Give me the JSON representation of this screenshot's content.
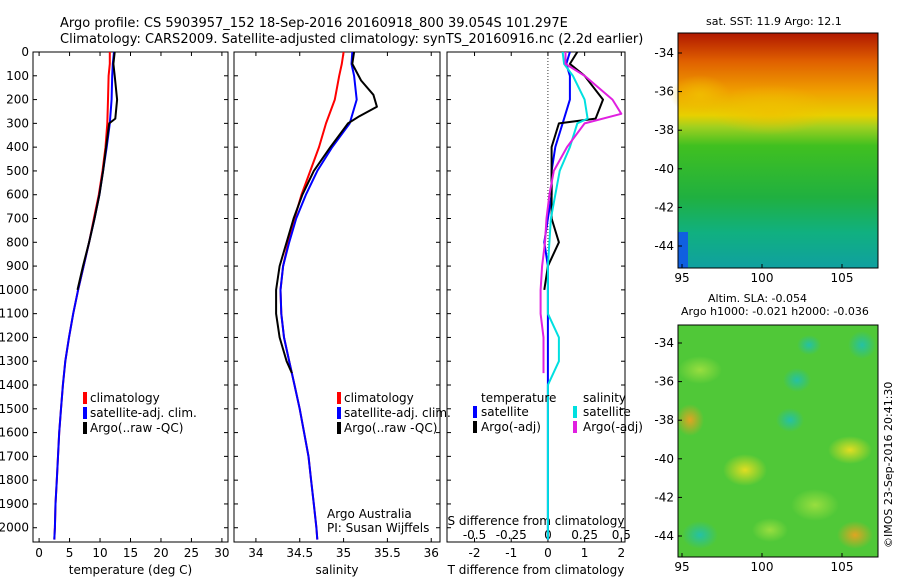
{
  "header": {
    "line1": "Argo profile: CS 5903957_152 18-Sep-2016 20160918_800 39.054S 101.297E",
    "line2": "Climatology: CARS2009. Satellite-adjusted climatology: synTS_20160916.nc (2.2d earlier)"
  },
  "colors": {
    "climatology": "#ff0000",
    "satellite_adj": "#0000ff",
    "argo": "#000000",
    "satellite_s": "#00e0e0",
    "argo_adj_s": "#e020e0"
  },
  "depth_axis": {
    "ticks": [
      0,
      100,
      200,
      300,
      400,
      500,
      600,
      700,
      800,
      900,
      1000,
      1100,
      1200,
      1300,
      1400,
      1500,
      1600,
      1700,
      1800,
      1900,
      2000
    ],
    "range": [
      0,
      2060
    ]
  },
  "legend": {
    "climatology": "climatology",
    "satellite_adj": "satellite-adj. clim.",
    "argo": "Argo(..raw -QC)"
  },
  "diff_legend": {
    "temperature_heading": "temperature",
    "salinity_heading": "salinity",
    "t_satellite": "satellite",
    "t_argo": "Argo(-adj)",
    "s_satellite": "satellite",
    "s_argo": "Argo(-adj)"
  },
  "credits": {
    "org": "Argo Australia",
    "pi": "PI: Susan Wijffels"
  },
  "maps": {
    "sst_title": "sat. SST: 11.9 Argo: 12.1",
    "sla_title1": "Altim. SLA: -0.054",
    "sla_title2": "Argo h1000: -0.021 h2000: -0.036",
    "lat_ticks": [
      "-34",
      "-36",
      "-38",
      "-40",
      "-42",
      "-44"
    ],
    "lon_ticks": [
      "95",
      "100",
      "105"
    ],
    "timestamp": "©IMOS 23-Sep-2016 20:41:30"
  },
  "chart_data": [
    {
      "type": "line",
      "id": "temperature",
      "xlabel": "temperature (deg C)",
      "ylabel": "",
      "xlim": [
        -1,
        31
      ],
      "ylim": [
        2060,
        0
      ],
      "xticks": [
        0,
        5,
        10,
        15,
        20,
        25,
        30
      ],
      "series": [
        {
          "name": "climatology",
          "color": "#ff0000",
          "width": 2,
          "points": [
            [
              11.6,
              0
            ],
            [
              11.6,
              50
            ],
            [
              11.4,
              100
            ],
            [
              11.3,
              200
            ],
            [
              11.2,
              300
            ],
            [
              10.9,
              400
            ],
            [
              10.4,
              500
            ],
            [
              9.8,
              600
            ],
            [
              9.0,
              700
            ],
            [
              8.2,
              800
            ],
            [
              7.3,
              900
            ],
            [
              6.4,
              1000
            ],
            [
              5.6,
              1100
            ],
            [
              4.9,
              1200
            ],
            [
              4.3,
              1300
            ],
            [
              3.9,
              1400
            ],
            [
              3.6,
              1500
            ],
            [
              3.3,
              1600
            ],
            [
              3.1,
              1700
            ],
            [
              2.9,
              1800
            ],
            [
              2.7,
              1900
            ],
            [
              2.6,
              2000
            ],
            [
              2.5,
              2050
            ]
          ]
        },
        {
          "name": "satellite-adj. clim.",
          "color": "#0000ff",
          "width": 2,
          "points": [
            [
              12.3,
              0
            ],
            [
              12.1,
              50
            ],
            [
              12.0,
              100
            ],
            [
              11.9,
              200
            ],
            [
              11.6,
              300
            ],
            [
              11.1,
              400
            ],
            [
              10.5,
              500
            ],
            [
              9.9,
              600
            ],
            [
              9.1,
              700
            ],
            [
              8.2,
              800
            ],
            [
              7.3,
              900
            ],
            [
              6.4,
              1000
            ],
            [
              5.6,
              1100
            ],
            [
              4.9,
              1200
            ],
            [
              4.3,
              1300
            ],
            [
              3.9,
              1400
            ],
            [
              3.6,
              1500
            ],
            [
              3.3,
              1600
            ],
            [
              3.1,
              1700
            ],
            [
              2.9,
              1800
            ],
            [
              2.7,
              1900
            ],
            [
              2.6,
              2000
            ],
            [
              2.5,
              2050
            ]
          ]
        },
        {
          "name": "Argo(..raw -QC)",
          "color": "#000000",
          "width": 2,
          "points": [
            [
              12.4,
              0
            ],
            [
              12.2,
              50
            ],
            [
              12.4,
              100
            ],
            [
              12.8,
              200
            ],
            [
              12.5,
              280
            ],
            [
              11.5,
              300
            ],
            [
              11.0,
              400
            ],
            [
              10.5,
              500
            ],
            [
              9.9,
              600
            ],
            [
              9.1,
              700
            ],
            [
              8.2,
              800
            ],
            [
              7.2,
              900
            ],
            [
              6.3,
              1000
            ]
          ]
        }
      ]
    },
    {
      "type": "line",
      "id": "salinity",
      "xlabel": "salinity",
      "ylabel": "",
      "xlim": [
        33.75,
        36.1
      ],
      "ylim": [
        2060,
        0
      ],
      "xticks": [
        34,
        34.5,
        35,
        35.5,
        36
      ],
      "series": [
        {
          "name": "climatology",
          "color": "#ff0000",
          "width": 2,
          "points": [
            [
              35.0,
              0
            ],
            [
              34.98,
              50
            ],
            [
              34.95,
              100
            ],
            [
              34.9,
              200
            ],
            [
              34.8,
              300
            ],
            [
              34.72,
              400
            ],
            [
              34.62,
              500
            ],
            [
              34.52,
              600
            ],
            [
              34.44,
              700
            ],
            [
              34.37,
              800
            ],
            [
              34.31,
              900
            ],
            [
              34.28,
              1000
            ],
            [
              34.29,
              1100
            ],
            [
              34.32,
              1200
            ],
            [
              34.38,
              1300
            ],
            [
              34.44,
              1400
            ],
            [
              34.5,
              1500
            ],
            [
              34.55,
              1600
            ],
            [
              34.6,
              1700
            ],
            [
              34.63,
              1800
            ],
            [
              34.66,
              1900
            ],
            [
              34.69,
              2000
            ],
            [
              34.7,
              2050
            ]
          ]
        },
        {
          "name": "satellite-adj. clim.",
          "color": "#0000ff",
          "width": 2,
          "points": [
            [
              35.1,
              0
            ],
            [
              35.09,
              50
            ],
            [
              35.12,
              100
            ],
            [
              35.15,
              200
            ],
            [
              35.07,
              300
            ],
            [
              34.87,
              400
            ],
            [
              34.7,
              500
            ],
            [
              34.57,
              600
            ],
            [
              34.46,
              700
            ],
            [
              34.38,
              800
            ],
            [
              34.31,
              900
            ],
            [
              34.28,
              1000
            ],
            [
              34.29,
              1100
            ],
            [
              34.32,
              1200
            ],
            [
              34.38,
              1300
            ],
            [
              34.44,
              1400
            ],
            [
              34.5,
              1500
            ],
            [
              34.55,
              1600
            ],
            [
              34.6,
              1700
            ],
            [
              34.63,
              1800
            ],
            [
              34.66,
              1900
            ],
            [
              34.69,
              2000
            ],
            [
              34.7,
              2050
            ]
          ]
        },
        {
          "name": "Argo(..raw -QC)",
          "color": "#000000",
          "width": 2,
          "points": [
            [
              35.12,
              0
            ],
            [
              35.1,
              50
            ],
            [
              35.2,
              120
            ],
            [
              35.34,
              180
            ],
            [
              35.38,
              230
            ],
            [
              35.18,
              270
            ],
            [
              35.05,
              300
            ],
            [
              34.85,
              400
            ],
            [
              34.66,
              500
            ],
            [
              34.53,
              600
            ],
            [
              34.43,
              700
            ],
            [
              34.35,
              800
            ],
            [
              34.27,
              900
            ],
            [
              34.23,
              1000
            ],
            [
              34.23,
              1100
            ],
            [
              34.27,
              1200
            ],
            [
              34.35,
              1300
            ],
            [
              34.41,
              1350
            ]
          ]
        }
      ]
    },
    {
      "type": "line",
      "id": "difference",
      "xlabel": "T difference from climatology",
      "top_label": "S difference from climatology",
      "ylabel": "",
      "xlim": [
        -2.75,
        2.1
      ],
      "ylim": [
        2060,
        0
      ],
      "xticks": [
        -2,
        -1,
        0,
        1,
        2
      ],
      "top_ticks": [
        "-0.5",
        "-0.25",
        "0",
        "0.25",
        "0.5"
      ],
      "top_tick_values": [
        -2,
        -1,
        0,
        1,
        2
      ],
      "series": [
        {
          "name": "temperature satellite",
          "color": "#0000ff",
          "width": 2,
          "points": [
            [
              0.6,
              0
            ],
            [
              0.5,
              50
            ],
            [
              0.6,
              100
            ],
            [
              0.6,
              200
            ],
            [
              0.4,
              300
            ],
            [
              0.2,
              400
            ],
            [
              0.1,
              500
            ],
            [
              0.1,
              600
            ],
            [
              0.0,
              700
            ],
            [
              -0.1,
              800
            ],
            [
              0.0,
              900
            ],
            [
              0.0,
              1000
            ],
            [
              0.0,
              1200
            ],
            [
              0.0,
              1500
            ],
            [
              0.0,
              2050
            ]
          ]
        },
        {
          "name": "temperature Argo(-adj)",
          "color": "#000000",
          "width": 2,
          "points": [
            [
              0.8,
              0
            ],
            [
              0.6,
              50
            ],
            [
              1.0,
              100
            ],
            [
              1.5,
              200
            ],
            [
              1.3,
              280
            ],
            [
              0.3,
              300
            ],
            [
              0.1,
              400
            ],
            [
              0.1,
              500
            ],
            [
              0.1,
              600
            ],
            [
              0.1,
              700
            ],
            [
              0.3,
              800
            ],
            [
              0.0,
              900
            ],
            [
              -0.1,
              1000
            ]
          ]
        },
        {
          "name": "salinity satellite",
          "color": "#00e0e0",
          "width": 2,
          "points": [
            [
              0.4,
              0
            ],
            [
              0.44,
              50
            ],
            [
              0.68,
              100
            ],
            [
              1.0,
              200
            ],
            [
              1.08,
              280
            ],
            [
              0.8,
              300
            ],
            [
              0.6,
              400
            ],
            [
              0.32,
              500
            ],
            [
              0.2,
              600
            ],
            [
              0.08,
              700
            ],
            [
              0.04,
              800
            ],
            [
              0.0,
              900
            ],
            [
              0.0,
              1100
            ],
            [
              0.3,
              1200
            ],
            [
              0.3,
              1300
            ],
            [
              0.0,
              1400
            ],
            [
              0.0,
              2050
            ]
          ]
        },
        {
          "name": "salinity Argo(-adj)",
          "color": "#e020e0",
          "width": 2,
          "points": [
            [
              0.48,
              0
            ],
            [
              0.48,
              50
            ],
            [
              1.0,
              100
            ],
            [
              1.76,
              200
            ],
            [
              2.0,
              260
            ],
            [
              1.0,
              300
            ],
            [
              0.52,
              400
            ],
            [
              0.16,
              500
            ],
            [
              0.04,
              600
            ],
            [
              -0.04,
              700
            ],
            [
              -0.08,
              800
            ],
            [
              -0.16,
              900
            ],
            [
              -0.2,
              1000
            ],
            [
              -0.2,
              1100
            ],
            [
              -0.12,
              1200
            ],
            [
              -0.12,
              1300
            ],
            [
              -0.12,
              1350
            ]
          ]
        }
      ]
    }
  ]
}
